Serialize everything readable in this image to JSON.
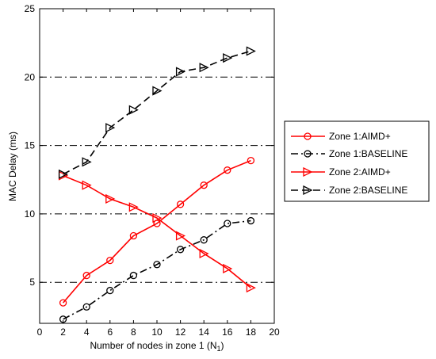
{
  "chart_data": {
    "type": "line",
    "xlabel": "Number of nodes in zone 1 (N",
    "xlabel_sub": "1",
    "xlabel_close": ")",
    "ylabel": "MAC Delay (ms)",
    "xlim": [
      0,
      20
    ],
    "ylim": [
      2,
      25
    ],
    "xticks": [
      0,
      2,
      4,
      6,
      8,
      10,
      12,
      14,
      16,
      18,
      20
    ],
    "yticks": [
      5,
      10,
      15,
      20,
      25
    ],
    "grid": "horizontal dash-dot at y = 5, 10, 15, 20",
    "legend_position": "right",
    "x": [
      2,
      4,
      6,
      8,
      10,
      12,
      14,
      16,
      18
    ],
    "series": [
      {
        "name": "Zone 1:AIMD+",
        "color": "#ff0000",
        "line": "solid",
        "marker": "circle",
        "values": [
          3.5,
          5.5,
          6.6,
          8.4,
          9.3,
          10.7,
          12.1,
          13.2,
          13.9
        ]
      },
      {
        "name": "Zone 1:BASELINE",
        "color": "#000000",
        "line": "dash-dot",
        "marker": "circle",
        "values": [
          2.3,
          3.2,
          4.4,
          5.5,
          6.3,
          7.4,
          8.1,
          9.3,
          9.5
        ]
      },
      {
        "name": "Zone 2:AIMD+",
        "color": "#ff0000",
        "line": "solid",
        "marker": "triangle-right",
        "values": [
          12.8,
          12.1,
          11.1,
          10.5,
          9.7,
          8.4,
          7.1,
          6.0,
          4.6
        ]
      },
      {
        "name": "Zone 2:BASELINE",
        "color": "#000000",
        "line": "dashed",
        "marker": "triangle-right",
        "values": [
          12.9,
          13.8,
          16.3,
          17.6,
          19.0,
          20.4,
          20.7,
          21.4,
          21.9
        ]
      }
    ]
  }
}
